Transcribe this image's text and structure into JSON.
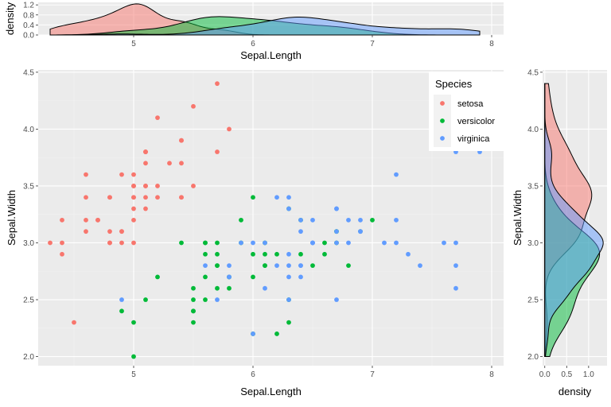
{
  "chart_data": [
    {
      "id": "scatter",
      "type": "scatter",
      "xlabel": "Sepal.Length",
      "ylabel": "Sepal.Width",
      "xlim": [
        4.2,
        8.1
      ],
      "ylim": [
        1.92,
        4.52
      ],
      "xticks": [
        5,
        6,
        7,
        8
      ],
      "yticks": [
        2.0,
        2.5,
        3.0,
        3.5,
        4.0,
        4.5
      ],
      "ytick_labels": [
        "2.0",
        "2.5",
        "3.0",
        "3.5",
        "4.0",
        "4.5"
      ],
      "grid": true,
      "legend": {
        "title": "Species",
        "placement": "top-right",
        "items": [
          "setosa",
          "versicolor",
          "virginica"
        ]
      },
      "series": [
        {
          "name": "setosa",
          "color": "#F8766D",
          "points": [
            [
              5.1,
              3.5
            ],
            [
              4.9,
              3.0
            ],
            [
              4.7,
              3.2
            ],
            [
              4.6,
              3.1
            ],
            [
              5.0,
              3.6
            ],
            [
              5.4,
              3.9
            ],
            [
              4.6,
              3.4
            ],
            [
              5.0,
              3.4
            ],
            [
              4.4,
              2.9
            ],
            [
              4.9,
              3.1
            ],
            [
              5.4,
              3.7
            ],
            [
              4.8,
              3.4
            ],
            [
              4.8,
              3.0
            ],
            [
              4.3,
              3.0
            ],
            [
              5.8,
              4.0
            ],
            [
              5.7,
              4.4
            ],
            [
              5.4,
              3.9
            ],
            [
              5.1,
              3.5
            ],
            [
              5.7,
              3.8
            ],
            [
              5.1,
              3.8
            ],
            [
              5.4,
              3.4
            ],
            [
              5.1,
              3.7
            ],
            [
              4.6,
              3.6
            ],
            [
              5.1,
              3.3
            ],
            [
              4.8,
              3.4
            ],
            [
              5.0,
              3.0
            ],
            [
              5.0,
              3.4
            ],
            [
              5.2,
              3.5
            ],
            [
              5.2,
              3.4
            ],
            [
              4.7,
              3.2
            ],
            [
              4.8,
              3.1
            ],
            [
              5.4,
              3.4
            ],
            [
              5.2,
              4.1
            ],
            [
              5.5,
              4.2
            ],
            [
              4.9,
              3.1
            ],
            [
              5.0,
              3.2
            ],
            [
              5.5,
              3.5
            ],
            [
              4.9,
              3.6
            ],
            [
              4.4,
              3.0
            ],
            [
              5.1,
              3.4
            ],
            [
              5.0,
              3.5
            ],
            [
              4.5,
              2.3
            ],
            [
              4.4,
              3.2
            ],
            [
              5.0,
              3.5
            ],
            [
              5.1,
              3.8
            ],
            [
              4.8,
              3.0
            ],
            [
              5.1,
              3.8
            ],
            [
              4.6,
              3.2
            ],
            [
              5.3,
              3.7
            ],
            [
              5.0,
              3.3
            ]
          ]
        },
        {
          "name": "versicolor",
          "color": "#00BA38",
          "points": [
            [
              7.0,
              3.2
            ],
            [
              6.4,
              3.2
            ],
            [
              6.9,
              3.1
            ],
            [
              5.5,
              2.3
            ],
            [
              6.5,
              2.8
            ],
            [
              5.7,
              2.8
            ],
            [
              6.3,
              3.3
            ],
            [
              4.9,
              2.4
            ],
            [
              6.6,
              2.9
            ],
            [
              5.2,
              2.7
            ],
            [
              5.0,
              2.0
            ],
            [
              5.9,
              3.0
            ],
            [
              6.0,
              2.2
            ],
            [
              6.1,
              2.9
            ],
            [
              5.6,
              2.9
            ],
            [
              6.7,
              3.1
            ],
            [
              5.6,
              3.0
            ],
            [
              5.8,
              2.7
            ],
            [
              6.2,
              2.2
            ],
            [
              5.6,
              2.5
            ],
            [
              5.9,
              3.2
            ],
            [
              6.1,
              2.8
            ],
            [
              6.3,
              2.5
            ],
            [
              6.1,
              2.8
            ],
            [
              6.4,
              2.9
            ],
            [
              6.6,
              3.0
            ],
            [
              6.8,
              2.8
            ],
            [
              6.7,
              3.0
            ],
            [
              6.0,
              2.9
            ],
            [
              5.7,
              2.6
            ],
            [
              5.5,
              2.4
            ],
            [
              5.5,
              2.4
            ],
            [
              5.8,
              2.7
            ],
            [
              6.0,
              2.7
            ],
            [
              5.4,
              3.0
            ],
            [
              6.0,
              3.4
            ],
            [
              6.7,
              3.1
            ],
            [
              6.3,
              2.3
            ],
            [
              5.6,
              3.0
            ],
            [
              5.5,
              2.5
            ],
            [
              5.5,
              2.6
            ],
            [
              6.1,
              3.0
            ],
            [
              5.8,
              2.6
            ],
            [
              5.0,
              2.3
            ],
            [
              5.6,
              2.7
            ],
            [
              5.7,
              3.0
            ],
            [
              5.7,
              2.9
            ],
            [
              6.2,
              2.9
            ],
            [
              5.1,
              2.5
            ],
            [
              5.7,
              2.8
            ]
          ]
        },
        {
          "name": "virginica",
          "color": "#619CFF",
          "points": [
            [
              6.3,
              3.3
            ],
            [
              5.8,
              2.7
            ],
            [
              7.1,
              3.0
            ],
            [
              6.3,
              2.9
            ],
            [
              6.5,
              3.0
            ],
            [
              7.6,
              3.0
            ],
            [
              4.9,
              2.5
            ],
            [
              7.3,
              2.9
            ],
            [
              6.7,
              2.5
            ],
            [
              7.2,
              3.6
            ],
            [
              6.5,
              3.2
            ],
            [
              6.4,
              2.7
            ],
            [
              6.8,
              3.0
            ],
            [
              5.7,
              2.5
            ],
            [
              5.8,
              2.8
            ],
            [
              6.4,
              3.2
            ],
            [
              6.5,
              3.0
            ],
            [
              7.7,
              3.8
            ],
            [
              7.7,
              2.6
            ],
            [
              6.0,
              2.2
            ],
            [
              6.9,
              3.2
            ],
            [
              5.6,
              2.8
            ],
            [
              7.7,
              2.8
            ],
            [
              6.3,
              2.7
            ],
            [
              6.7,
              3.3
            ],
            [
              7.2,
              3.2
            ],
            [
              6.2,
              2.8
            ],
            [
              6.1,
              3.0
            ],
            [
              6.4,
              2.8
            ],
            [
              7.2,
              3.0
            ],
            [
              7.4,
              2.8
            ],
            [
              7.9,
              3.8
            ],
            [
              6.4,
              2.8
            ],
            [
              6.3,
              2.8
            ],
            [
              6.1,
              2.6
            ],
            [
              7.7,
              3.0
            ],
            [
              6.3,
              3.4
            ],
            [
              6.4,
              3.1
            ],
            [
              6.0,
              3.0
            ],
            [
              6.9,
              3.1
            ],
            [
              6.7,
              3.1
            ],
            [
              6.9,
              3.1
            ],
            [
              5.8,
              2.7
            ],
            [
              6.8,
              3.2
            ],
            [
              6.7,
              3.3
            ],
            [
              6.7,
              3.0
            ],
            [
              6.3,
              2.5
            ],
            [
              6.5,
              3.0
            ],
            [
              6.2,
              3.4
            ],
            [
              5.9,
              3.0
            ]
          ]
        }
      ]
    },
    {
      "id": "top-density",
      "type": "area",
      "xlabel": "Sepal.Length",
      "ylabel": "density",
      "xlim": [
        4.2,
        8.1
      ],
      "ylim": [
        0,
        1.3
      ],
      "xticks": [
        5,
        6,
        7,
        8
      ],
      "yticks": [
        0.0,
        0.4,
        0.8,
        1.2
      ],
      "ytick_labels": [
        "0.0",
        "0.4",
        "0.8",
        "1.2"
      ],
      "grid": true,
      "note": "marginal kernel densities of each species, sharing the scatter's x axis"
    },
    {
      "id": "right-density",
      "type": "area",
      "xlabel": "density",
      "ylabel": "Sepal.Width",
      "xlim": [
        -0.05,
        1.42
      ],
      "ylim": [
        1.92,
        4.52
      ],
      "xticks": [
        0.0,
        0.5,
        1.0
      ],
      "xtick_labels": [
        "0.0",
        "0.5",
        "1.0"
      ],
      "yticks": [
        2.0,
        2.5,
        3.0,
        3.5,
        4.0,
        4.5
      ],
      "ytick_labels": [
        "2.0",
        "2.5",
        "3.0",
        "3.5",
        "4.0",
        "4.5"
      ],
      "grid": true,
      "note": "marginal kernel densities of each species, sharing the scatter's y axis"
    }
  ]
}
